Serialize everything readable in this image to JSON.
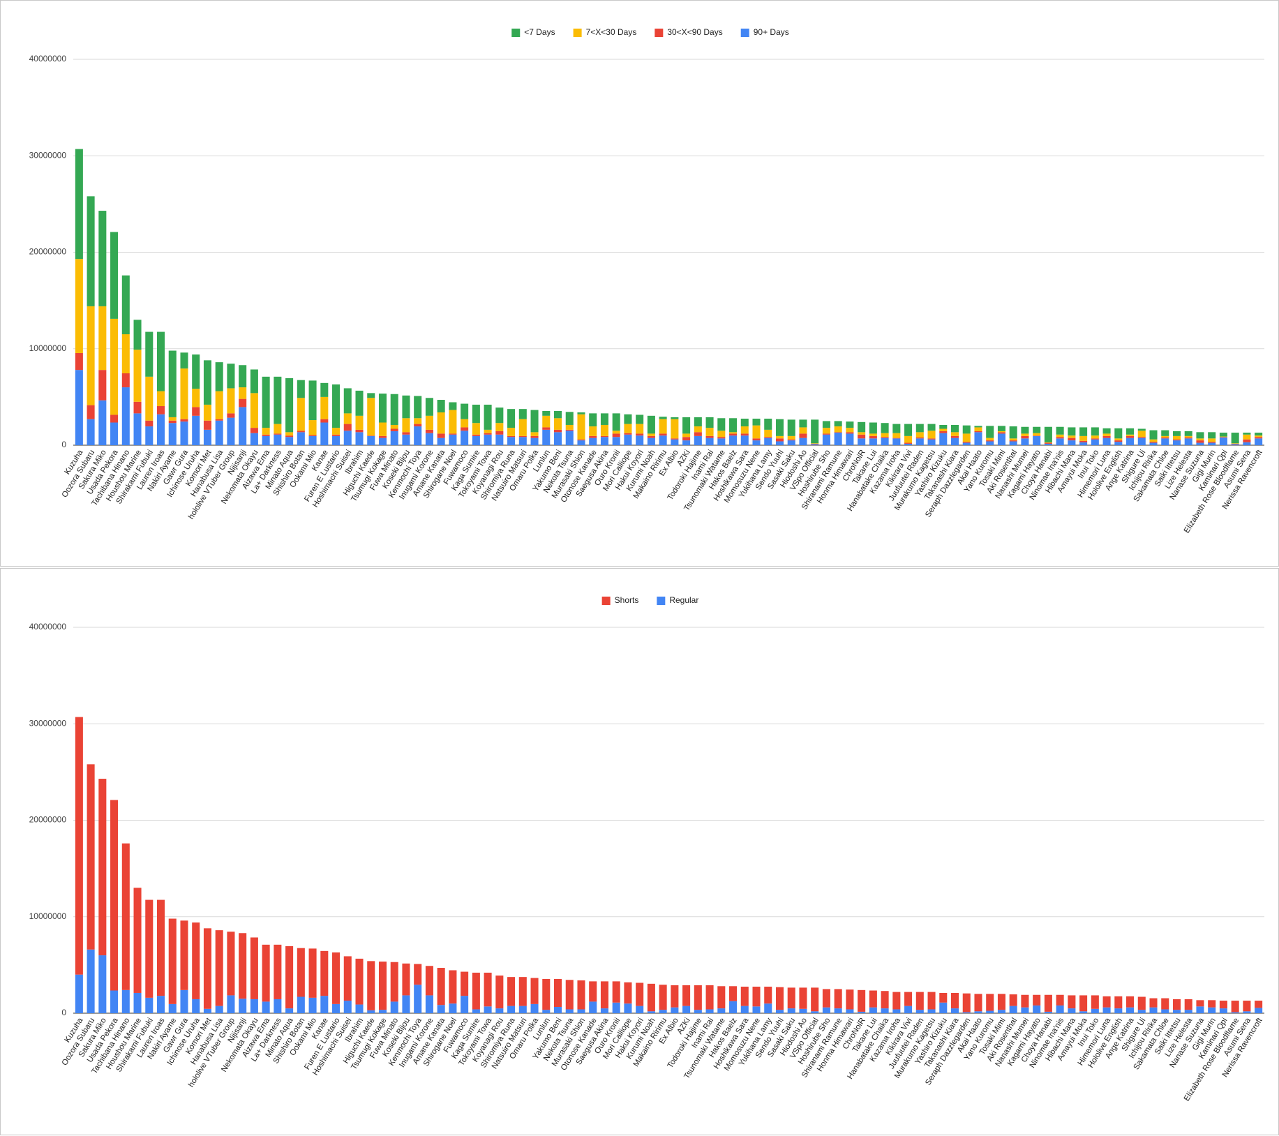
{
  "chart_data": [
    {
      "type": "bar",
      "stacked": true,
      "grid": true,
      "legend": "top",
      "ylim": [
        0,
        40000000
      ],
      "yticks": [
        0,
        10000000,
        20000000,
        30000000,
        40000000
      ],
      "categories": [
        "Kuzuha",
        "Oozora Subaru",
        "Sakura Miko",
        "Usada Pekora",
        "Tachibana Hinano",
        "Houshou Marine",
        "Shirakami Fubuki",
        "Lauren Iroas",
        "Nakiri Ayame",
        "Gawr Gura",
        "Ichinose Uruha",
        "Komori Met",
        "Hanabusa Lisa",
        "hololive VTuber Group",
        "Nijisanji",
        "Nekomata Okayu",
        "Aizawa Ema",
        "La+ Darkness",
        "Minato Aqua",
        "Shishiro Botan",
        "Ookami Mio",
        "Kanae",
        "Furen E Lustario",
        "Hoshimachi Suisei",
        "Ibrahim",
        "Higuchi Kaede",
        "Tsumugi Kokage",
        "Fuwa Minato",
        "Koseki Bijou",
        "Kenmochi Toya",
        "Inugami Korone",
        "Amane Kanata",
        "Shirogane Noel",
        "Fuwamoco",
        "Kaga Sumire",
        "Tokoyami Towa",
        "Koyanagi Rou",
        "Shiromiya Runa",
        "Natsuiro Matsuri",
        "Omaru Polka",
        "Lunlun",
        "Yakumo Beni",
        "Nekota Tsuna",
        "Murasaki Shion",
        "Otonose Kanade",
        "Saegusa Akina",
        "Ouro Kronii",
        "Mori Calliope",
        "Hakui Koyori",
        "Kurumi Noah",
        "Makaino Ririmu",
        "Ex Albio",
        "AZKi",
        "Todoroki Hajime",
        "Inami Rai",
        "Tsunomaki Watame",
        "Hakos Baelz",
        "Hoshikawa Sara",
        "Momosuzu Nene",
        "Yukihana Lamy",
        "Sendo Yuuhi",
        "Sasaki Saku",
        "Hiodoshi Ao",
        "VSpo Official",
        "Hoshirube Sho",
        "Shiranami Ramune",
        "Honma Himawari",
        "ChroNoiR",
        "Takane Lui",
        "Hanabatake Chaika",
        "Kazama Iroha",
        "Kikirara Vivi",
        "Juufuutei Raden",
        "Murakumo Kagetsu",
        "Yashiro Kizuku",
        "Takanashi Kiara",
        "Seraph Dazzlegarden",
        "Akai Haato",
        "Yano Kuromu",
        "Tosaki Mimi",
        "Aki Rosenthal",
        "Nanashi Mumei",
        "Kagami Hayato",
        "Choya Hanabi",
        "Ninomae Ina'nis",
        "Hibachi Mana",
        "Amayui Moka",
        "Inui Toko",
        "Himemori Luna",
        "Hololive English",
        "Ange Katrina",
        "Shigure Ui",
        "Ichijou Ririka",
        "Sakamata Chloe",
        "Saiki Ittetsu",
        "Lize Helesta",
        "Nanase Suzuna",
        "Gigi Murin",
        "Kaminari Qpi",
        "Elizabeth Rose Bloodflame",
        "Asumi Sena",
        "Nerissa Ravencroft"
      ],
      "series": [
        {
          "name": "<7 Days",
          "color": "#34a853",
          "values": [
            11400000,
            11400000,
            9900000,
            9000000,
            6100000,
            3100000,
            4650000,
            6150000,
            6900000,
            1650000,
            3550000,
            4600000,
            3000000,
            2550000,
            2300000,
            2450000,
            5300000,
            4900000,
            5600000,
            1850000,
            4100000,
            1450000,
            4500000,
            2600000,
            2600000,
            500000,
            3000000,
            3200000,
            2350000,
            2300000,
            1850000,
            1300000,
            800000,
            1600000,
            1900000,
            2600000,
            1600000,
            1950000,
            1050000,
            2300000,
            500000,
            750000,
            1350000,
            200000,
            1350000,
            1200000,
            1800000,
            1000000,
            950000,
            1850000,
            250000,
            200000,
            1700000,
            950000,
            1100000,
            1300000,
            1450000,
            800000,
            700000,
            1150000,
            1750000,
            1700000,
            800000,
            2450000,
            700000,
            550000,
            650000,
            1050000,
            1150000,
            1050000,
            950000,
            1250000,
            850000,
            700000,
            400000,
            750000,
            850000,
            150000,
            1250000,
            550000,
            1250000,
            700000,
            650000,
            1600000,
            800000,
            850000,
            900000,
            850000,
            550000,
            1050000,
            650000,
            200000,
            950000,
            600000,
            500000,
            500000,
            650000,
            650000,
            400000,
            1100000,
            200000,
            300000
          ]
        },
        {
          "name": "7<X<30 Days",
          "color": "#fbbc04",
          "values": [
            9750000,
            10250000,
            6600000,
            9950000,
            4050000,
            5400000,
            4550000,
            1550000,
            350000,
            5250000,
            1900000,
            1650000,
            2900000,
            2600000,
            1200000,
            3600000,
            700000,
            1000000,
            350000,
            3400000,
            1550000,
            2300000,
            700000,
            1100000,
            1450000,
            3900000,
            1400000,
            400000,
            1450000,
            600000,
            1450000,
            2200000,
            2450000,
            850000,
            1200000,
            350000,
            850000,
            850000,
            1750000,
            400000,
            1200000,
            1200000,
            500000,
            2600000,
            1000000,
            1150000,
            300000,
            950000,
            1000000,
            250000,
            1500000,
            2000000,
            350000,
            600000,
            850000,
            650000,
            150000,
            750000,
            1350000,
            750000,
            250000,
            350000,
            650000,
            50000,
            600000,
            600000,
            450000,
            250000,
            250000,
            400000,
            500000,
            700000,
            550000,
            800000,
            250000,
            400000,
            850000,
            400000,
            250000,
            100000,
            200000,
            250000,
            250000,
            50000,
            250000,
            250000,
            500000,
            300000,
            250000,
            200000,
            150000,
            650000,
            250000,
            150000,
            350000,
            150000,
            200000,
            350000,
            50000,
            50000,
            500000,
            150000
          ]
        },
        {
          "name": "30<X<90 Days",
          "color": "#ea4335",
          "values": [
            1750000,
            1450000,
            3150000,
            800000,
            1450000,
            1200000,
            600000,
            850000,
            250000,
            250000,
            900000,
            950000,
            150000,
            450000,
            850000,
            550000,
            150000,
            100000,
            150000,
            150000,
            100000,
            350000,
            150000,
            700000,
            250000,
            50000,
            200000,
            250000,
            250000,
            250000,
            350000,
            450000,
            100000,
            350000,
            150000,
            150000,
            350000,
            100000,
            100000,
            200000,
            250000,
            250000,
            100000,
            100000,
            200000,
            100000,
            350000,
            150000,
            200000,
            200000,
            200000,
            100000,
            350000,
            400000,
            200000,
            150000,
            200000,
            200000,
            200000,
            100000,
            300000,
            100000,
            450000,
            50000,
            100000,
            50000,
            150000,
            400000,
            250000,
            100000,
            50000,
            100000,
            100000,
            100000,
            200000,
            200000,
            100000,
            100000,
            100000,
            150000,
            100000,
            250000,
            50000,
            100000,
            150000,
            250000,
            150000,
            100000,
            200000,
            150000,
            200000,
            100000,
            100000,
            100000,
            100000,
            100000,
            250000,
            100000,
            50000,
            50000,
            300000,
            150000
          ]
        },
        {
          "name": "90+ Days",
          "color": "#4285f4",
          "values": [
            7800000,
            2700000,
            4650000,
            2350000,
            6000000,
            3300000,
            1950000,
            3200000,
            2300000,
            2450000,
            3050000,
            1600000,
            2550000,
            2850000,
            3950000,
            1250000,
            950000,
            1100000,
            850000,
            1350000,
            950000,
            2350000,
            950000,
            1500000,
            1350000,
            950000,
            750000,
            1450000,
            1100000,
            1950000,
            1250000,
            750000,
            1100000,
            1500000,
            950000,
            1100000,
            1100000,
            850000,
            850000,
            750000,
            1600000,
            1350000,
            1500000,
            500000,
            750000,
            850000,
            850000,
            1100000,
            1000000,
            750000,
            1000000,
            600000,
            500000,
            950000,
            750000,
            700000,
            1000000,
            1000000,
            500000,
            750000,
            400000,
            500000,
            750000,
            100000,
            1100000,
            1300000,
            1200000,
            700000,
            700000,
            750000,
            700000,
            150000,
            700000,
            600000,
            1250000,
            750000,
            250000,
            1350000,
            400000,
            1200000,
            400000,
            700000,
            950000,
            150000,
            700000,
            500000,
            300000,
            600000,
            750000,
            350000,
            750000,
            750000,
            250000,
            700000,
            500000,
            700000,
            250000,
            250000,
            800000,
            100000,
            300000,
            700000
          ]
        }
      ]
    },
    {
      "type": "bar",
      "stacked": true,
      "grid": true,
      "legend": "top",
      "ylim": [
        0,
        40000000
      ],
      "yticks": [
        0,
        10000000,
        20000000,
        30000000,
        40000000
      ],
      "categories": [
        "Kuzuha",
        "Oozora Subaru",
        "Sakura Miko",
        "Usada Pekora",
        "Tachibana Hinano",
        "Houshou Marine",
        "Shirakami Fubuki",
        "Lauren Iroas",
        "Nakiri Ayame",
        "Gawr Gura",
        "Ichinose Uruha",
        "Komori Met",
        "Hanabusa Lisa",
        "hololive VTuber Group",
        "Nijisanji",
        "Nekomata Okayu",
        "Aizawa Ema",
        "La+ Darkness",
        "Minato Aqua",
        "Shishiro Botan",
        "Ookami Mio",
        "Kanae",
        "Furen E Lustario",
        "Hoshimachi Suisei",
        "Ibrahim",
        "Higuchi Kaede",
        "Tsumugi Kokage",
        "Fuwa Minato",
        "Koseki Bijou",
        "Kenmochi Toya",
        "Inugami Korone",
        "Amane Kanata",
        "Shirogane Noel",
        "Fuwamoco",
        "Kaga Sumire",
        "Tokoyami Towa",
        "Koyanagi Rou",
        "Shiromiya Runa",
        "Natsuiro Matsuri",
        "Omaru Polka",
        "Lunlun",
        "Yakumo Beni",
        "Nekota Tsuna",
        "Murasaki Shion",
        "Otonose Kanade",
        "Saegusa Akina",
        "Ouro Kronii",
        "Mori Calliope",
        "Hakui Koyori",
        "Kurumi Noah",
        "Makaino Ririmu",
        "Ex Albio",
        "AZKi",
        "Todoroki Hajime",
        "Inami Rai",
        "Tsunomaki Watame",
        "Hakos Baelz",
        "Hoshikawa Sara",
        "Momosuzu Nene",
        "Yukihana Lamy",
        "Sendo Yuuhi",
        "Sasaki Saku",
        "Hiodoshi Ao",
        "VSpo Official",
        "Hoshirube Sho",
        "Shiranami Ramune",
        "Honma Himawari",
        "ChroNoiR",
        "Takane Lui",
        "Hanabatake Chaika",
        "Kazama Iroha",
        "Kikirara Vivi",
        "Juufuutei Raden",
        "Murakumo Kagetsu",
        "Yashiro Kizuku",
        "Takanashi Kiara",
        "Seraph Dazzlegarden",
        "Akai Haato",
        "Yano Kuromu",
        "Tosaki Mimi",
        "Aki Rosenthal",
        "Nanashi Mumei",
        "Kagami Hayato",
        "Choya Hanabi",
        "Ninomae Ina'nis",
        "Hibachi Mana",
        "Amayui Moka",
        "Inui Toko",
        "Himemori Luna",
        "Hololive English",
        "Ange Katrina",
        "Shigure Ui",
        "Ichijou Ririka",
        "Sakamata Chloe",
        "Saiki Ittetsu",
        "Lize Helesta",
        "Nanase Suzuna",
        "Gigi Murin",
        "Kaminari Qpi",
        "Elizabeth Rose Bloodflame",
        "Asumi Sena",
        "Nerissa Ravencroft"
      ],
      "series": [
        {
          "name": "Shorts",
          "color": "#ea4335",
          "values": [
            26700000,
            19200000,
            18300000,
            19750000,
            15200000,
            10900000,
            10150000,
            9950000,
            8850000,
            7200000,
            7950000,
            8350000,
            7850000,
            6600000,
            6800000,
            6400000,
            5900000,
            5650000,
            6450000,
            5050000,
            5100000,
            4650000,
            5350000,
            4600000,
            4750000,
            5100000,
            5000000,
            4100000,
            3300000,
            2150000,
            3050000,
            3850000,
            3450000,
            2500000,
            3800000,
            3500000,
            3400000,
            3000000,
            3000000,
            2700000,
            3200000,
            2900000,
            3050000,
            3000000,
            2100000,
            2800000,
            2200000,
            2200000,
            2400000,
            2850000,
            2600000,
            2300000,
            2150000,
            2550000,
            2500000,
            2300000,
            1550000,
            2000000,
            2050000,
            1750000,
            2350000,
            2150000,
            2200000,
            2450000,
            1900000,
            2000000,
            2050000,
            2250000,
            1750000,
            1800000,
            1800000,
            1450000,
            1850000,
            1800000,
            1000000,
            1600000,
            1950000,
            1800000,
            1750000,
            1650000,
            1200000,
            1300000,
            1100000,
            1750000,
            1100000,
            1350000,
            1650000,
            1400000,
            1150000,
            1250000,
            1150000,
            1350000,
            950000,
            1150000,
            1100000,
            1100000,
            650000,
            750000,
            800000,
            1200000,
            1100000,
            750000
          ]
        },
        {
          "name": "Regular",
          "color": "#4285f4",
          "values": [
            4000000,
            6600000,
            6000000,
            2350000,
            2400000,
            2100000,
            1600000,
            1800000,
            950000,
            2400000,
            1450000,
            450000,
            750000,
            1850000,
            1500000,
            1450000,
            1200000,
            1450000,
            500000,
            1700000,
            1600000,
            1800000,
            950000,
            1300000,
            900000,
            300000,
            350000,
            1200000,
            1850000,
            2950000,
            1850000,
            850000,
            1000000,
            1800000,
            400000,
            700000,
            500000,
            750000,
            750000,
            950000,
            350000,
            650000,
            400000,
            400000,
            1200000,
            500000,
            1100000,
            1000000,
            750000,
            200000,
            350000,
            600000,
            750000,
            350000,
            400000,
            500000,
            1250000,
            750000,
            700000,
            1000000,
            350000,
            500000,
            450000,
            200000,
            600000,
            500000,
            400000,
            150000,
            600000,
            500000,
            400000,
            750000,
            350000,
            400000,
            1100000,
            500000,
            100000,
            200000,
            250000,
            350000,
            750000,
            600000,
            800000,
            150000,
            800000,
            500000,
            200000,
            450000,
            600000,
            500000,
            600000,
            350000,
            600000,
            400000,
            350000,
            350000,
            700000,
            600000,
            500000,
            100000,
            200000,
            550000
          ]
        }
      ]
    }
  ]
}
